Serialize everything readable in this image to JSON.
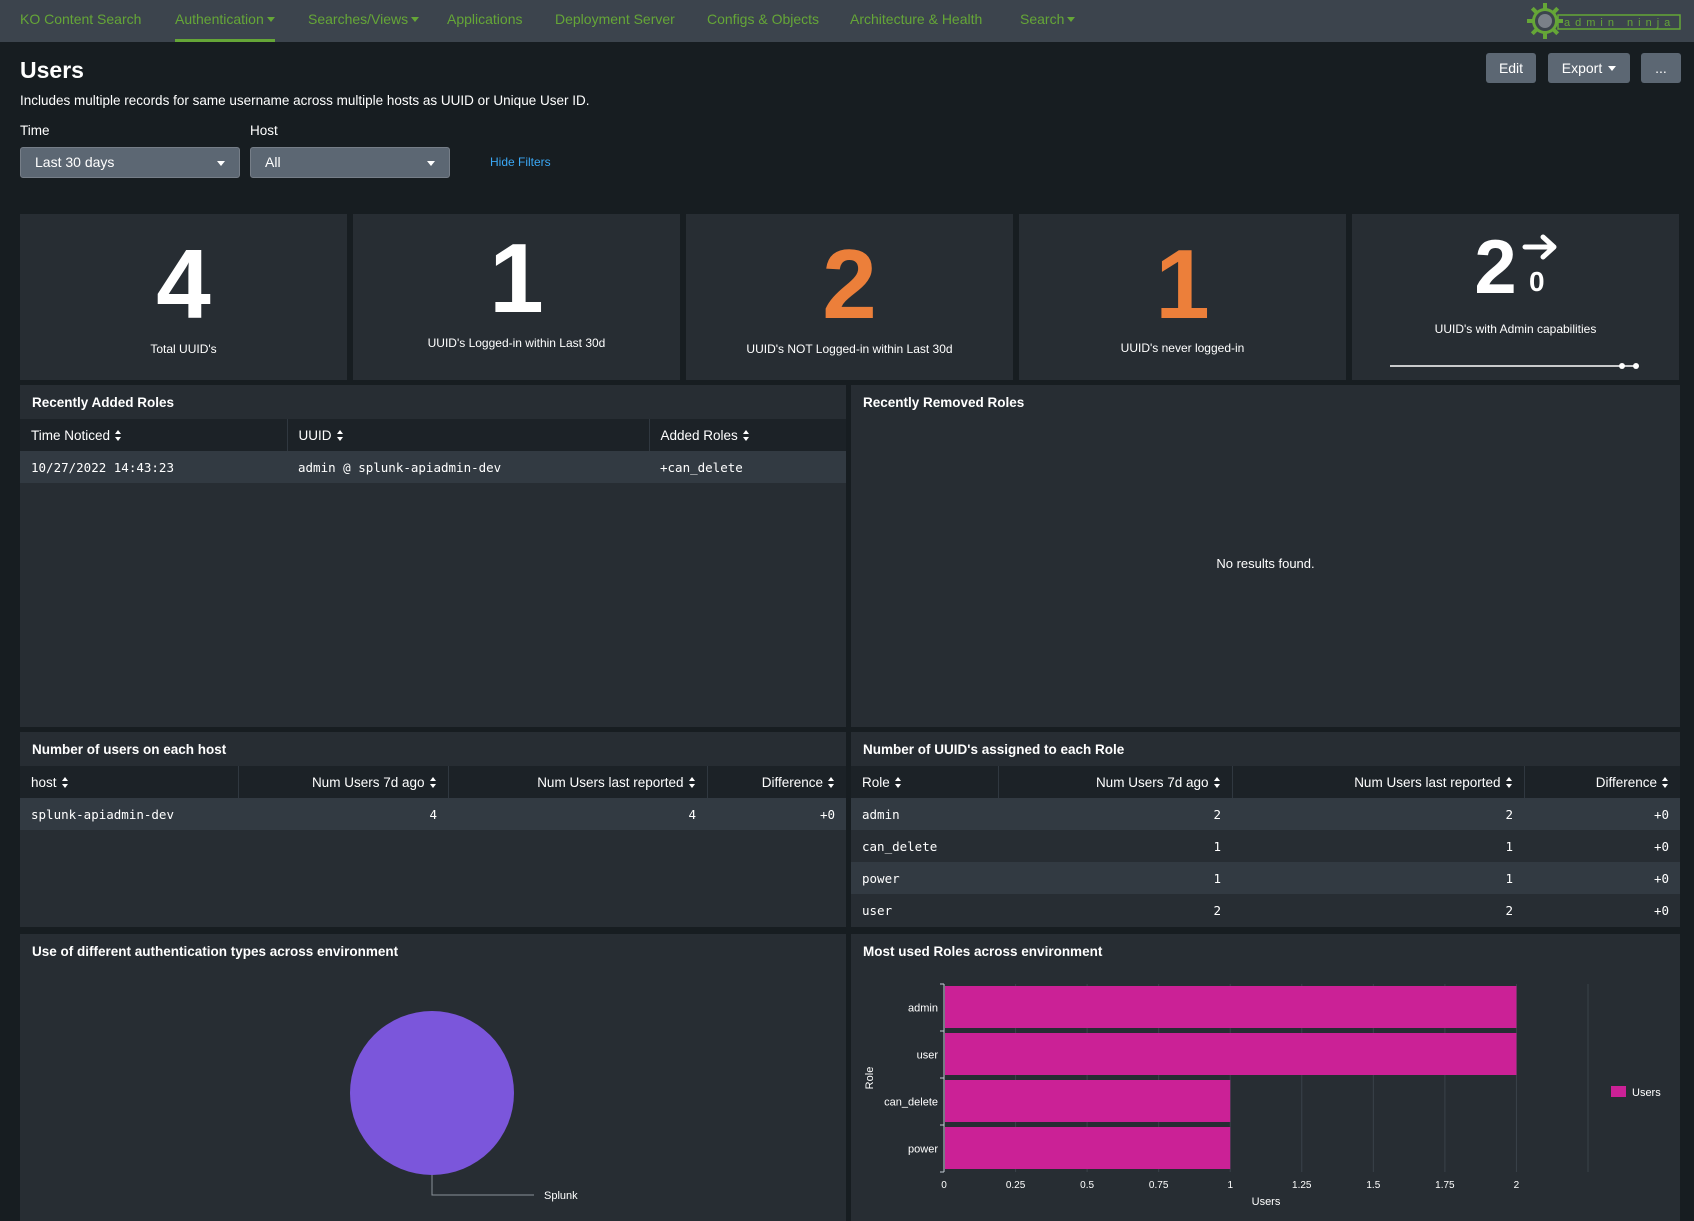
{
  "nav": {
    "items": [
      {
        "label": "KO Content Search",
        "dropdown": false
      },
      {
        "label": "Authentication",
        "dropdown": true,
        "active": true
      },
      {
        "label": "Searches/Views",
        "dropdown": true
      },
      {
        "label": "Applications",
        "dropdown": false
      },
      {
        "label": "Deployment Server",
        "dropdown": false
      },
      {
        "label": "Configs & Objects",
        "dropdown": false
      },
      {
        "label": "Architecture & Health",
        "dropdown": false
      },
      {
        "label": "Search",
        "dropdown": true
      }
    ],
    "logo_text": "admin ninja",
    "accent_color": "#65a637"
  },
  "header": {
    "title": "Users",
    "description": "Includes multiple records for same username across multiple hosts as UUID or Unique User ID.",
    "edit_label": "Edit",
    "export_label": "Export",
    "more_label": "..."
  },
  "filters": {
    "time_label": "Time",
    "time_value": "Last 30 days",
    "host_label": "Host",
    "host_value": "All",
    "hide_filters_label": "Hide Filters"
  },
  "singles": [
    {
      "value": "4",
      "label": "Total UUID's",
      "color": "#ffffff"
    },
    {
      "value": "1",
      "label": "UUID's Logged-in within Last 30d",
      "color": "#ffffff"
    },
    {
      "value": "2",
      "label": "UUID's NOT Logged-in within Last 30d",
      "color": "#ec7f3a"
    },
    {
      "value": "1",
      "label": "UUID's never logged-in",
      "color": "#ec7f3a"
    },
    {
      "value": "2",
      "delta": "0",
      "label": "UUID's with Admin capabilities",
      "color": "#ffffff",
      "trend": "right-arrow"
    }
  ],
  "recently_added": {
    "title": "Recently Added Roles",
    "columns": [
      "Time Noticed",
      "UUID",
      "Added Roles"
    ],
    "rows": [
      [
        "10/27/2022 14:43:23",
        "admin @ splunk-apiadmin-dev",
        "+can_delete"
      ]
    ]
  },
  "recently_removed": {
    "title": "Recently Removed Roles",
    "empty_message": "No results found."
  },
  "users_per_host": {
    "title": "Number of users on each host",
    "columns": [
      "host",
      "Num Users 7d ago",
      "Num Users last reported",
      "Difference"
    ],
    "rows": [
      [
        "splunk-apiadmin-dev",
        "4",
        "4",
        "+0"
      ]
    ]
  },
  "uuids_per_role": {
    "title": "Number of UUID's assigned to each Role",
    "columns": [
      "Role",
      "Num Users 7d ago",
      "Num Users last reported",
      "Difference"
    ],
    "rows": [
      [
        "admin",
        "2",
        "2",
        "+0"
      ],
      [
        "can_delete",
        "1",
        "1",
        "+0"
      ],
      [
        "power",
        "1",
        "1",
        "+0"
      ],
      [
        "user",
        "2",
        "2",
        "+0"
      ]
    ]
  },
  "auth_types_panel": {
    "title": "Use of different authentication types across environment"
  },
  "roles_panel": {
    "title": "Most used Roles across environment"
  },
  "chart_data": [
    {
      "type": "pie",
      "categories": [
        "Splunk"
      ],
      "values": [
        1
      ],
      "colors": [
        "#7b56db"
      ]
    },
    {
      "type": "bar",
      "orientation": "horizontal",
      "categories": [
        "admin",
        "user",
        "can_delete",
        "power"
      ],
      "series": [
        {
          "name": "Users",
          "values": [
            2,
            2,
            1,
            1
          ],
          "color": "#cb2196"
        }
      ],
      "xlabel": "Users",
      "ylabel": "Role",
      "xlim": [
        0,
        2.25
      ],
      "xticks": [
        "0",
        "0.25",
        "0.5",
        "0.75",
        "1",
        "1.25",
        "1.5",
        "1.75",
        "2"
      ],
      "legend": "right",
      "grid": true
    }
  ]
}
